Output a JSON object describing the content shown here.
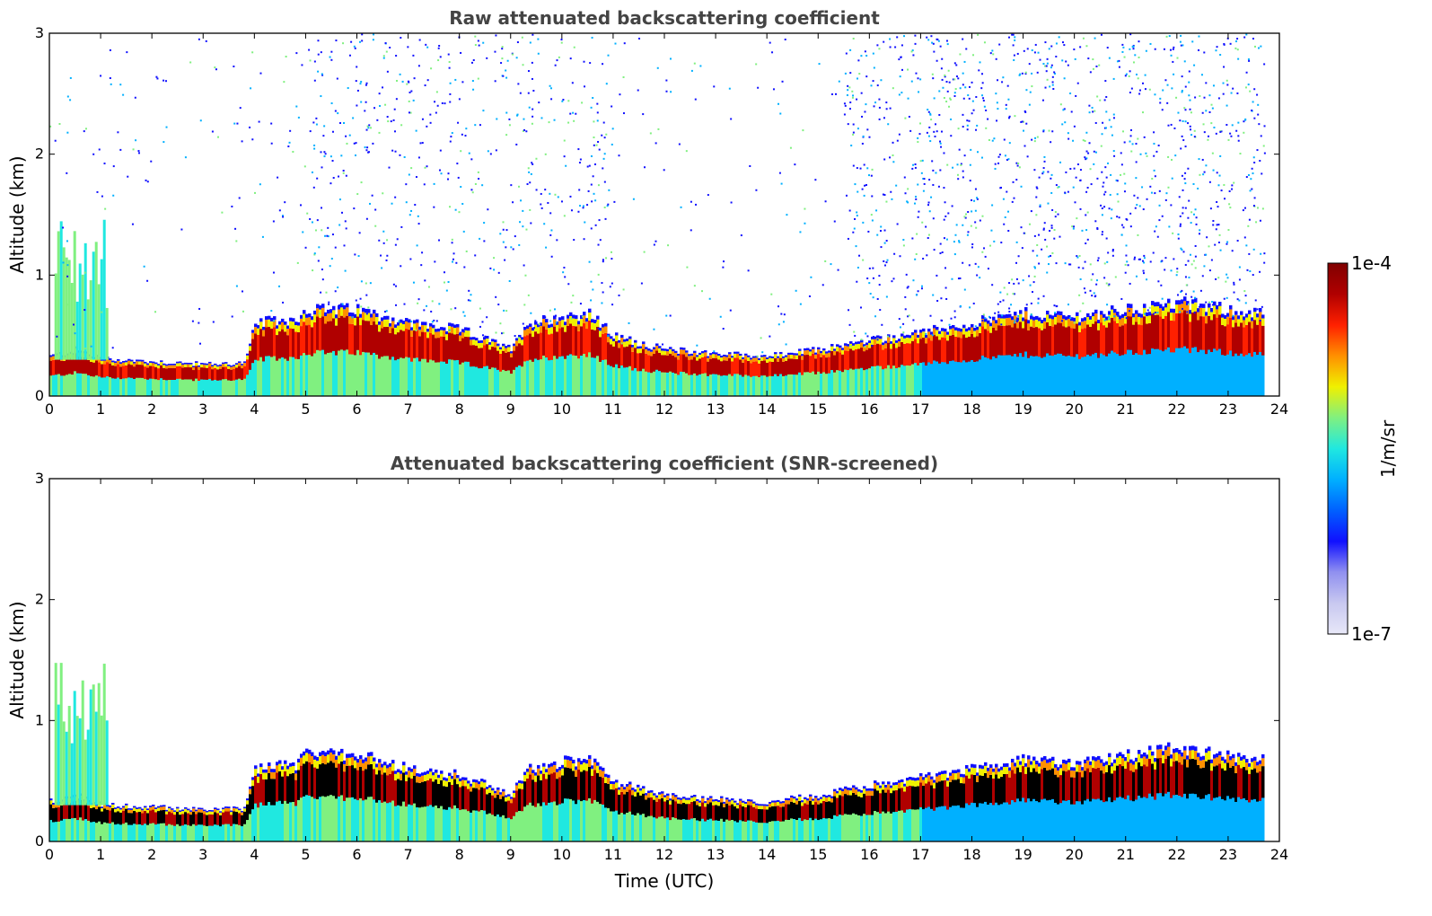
{
  "chart_data": [
    {
      "type": "heatmap",
      "title": "Raw attenuated backscattering coefficient",
      "xlabel": "",
      "ylabel": "Altitude (km)",
      "xlim": [
        0,
        24
      ],
      "ylim": [
        0,
        3
      ],
      "x_ticks": [
        "0",
        "1",
        "2",
        "3",
        "4",
        "5",
        "6",
        "7",
        "8",
        "9",
        "10",
        "11",
        "12",
        "13",
        "14",
        "15",
        "16",
        "17",
        "18",
        "19",
        "20",
        "21",
        "22",
        "23",
        "24"
      ],
      "y_ticks": [
        "0",
        "1",
        "2",
        "3"
      ],
      "boundary_layer_top_km": {
        "time_utc": [
          0,
          0.5,
          1,
          2,
          3,
          3.8,
          4,
          4.8,
          5,
          6,
          7,
          8,
          9,
          9.3,
          10,
          10.5,
          11,
          12,
          13,
          14,
          15,
          16,
          17,
          18,
          19,
          20,
          21,
          22,
          23,
          23.7
        ],
        "altitude_km": [
          0.3,
          0.35,
          0.28,
          0.26,
          0.24,
          0.25,
          0.55,
          0.58,
          0.65,
          0.65,
          0.55,
          0.5,
          0.35,
          0.55,
          0.6,
          0.62,
          0.45,
          0.35,
          0.32,
          0.3,
          0.35,
          0.42,
          0.48,
          0.55,
          0.62,
          0.6,
          0.65,
          0.7,
          0.65,
          0.62
        ]
      },
      "noise_region": "scattered signal up to 3 km, strongest after 15 UTC"
    },
    {
      "type": "heatmap",
      "title": "Attenuated backscattering coefficient (SNR-screened)",
      "xlabel": "Time (UTC)",
      "ylabel": "Altitude (km)",
      "xlim": [
        0,
        24
      ],
      "ylim": [
        0,
        3
      ],
      "x_ticks": [
        "0",
        "1",
        "2",
        "3",
        "4",
        "5",
        "6",
        "7",
        "8",
        "9",
        "10",
        "11",
        "12",
        "13",
        "14",
        "15",
        "16",
        "17",
        "18",
        "19",
        "20",
        "21",
        "22",
        "23",
        "24"
      ],
      "y_ticks": [
        "0",
        "1",
        "2",
        "3"
      ],
      "boundary_layer_top_km": {
        "time_utc": [
          0,
          0.5,
          1,
          2,
          3,
          3.8,
          4,
          4.8,
          5,
          6,
          7,
          8,
          9,
          9.3,
          10,
          10.5,
          11,
          12,
          13,
          14,
          15,
          16,
          17,
          18,
          19,
          20,
          21,
          22,
          23,
          23.7
        ],
        "altitude_km": [
          0.3,
          0.35,
          0.28,
          0.26,
          0.24,
          0.25,
          0.55,
          0.58,
          0.65,
          0.65,
          0.55,
          0.5,
          0.35,
          0.55,
          0.6,
          0.62,
          0.45,
          0.35,
          0.32,
          0.3,
          0.35,
          0.42,
          0.48,
          0.55,
          0.62,
          0.6,
          0.65,
          0.7,
          0.65,
          0.62
        ]
      },
      "noise_region": "noise screened out above boundary layer"
    }
  ],
  "colorbar": {
    "label": "1/m/sr",
    "min_label": "1e-7",
    "max_label": "1e-4",
    "colors": [
      "#e8e8f8",
      "#c8c8f0",
      "#9090f0",
      "#1010ff",
      "#0060ff",
      "#00b0ff",
      "#20e8e0",
      "#80f080",
      "#f0f000",
      "#ff9000",
      "#ff2000",
      "#b00000",
      "#800000"
    ]
  }
}
